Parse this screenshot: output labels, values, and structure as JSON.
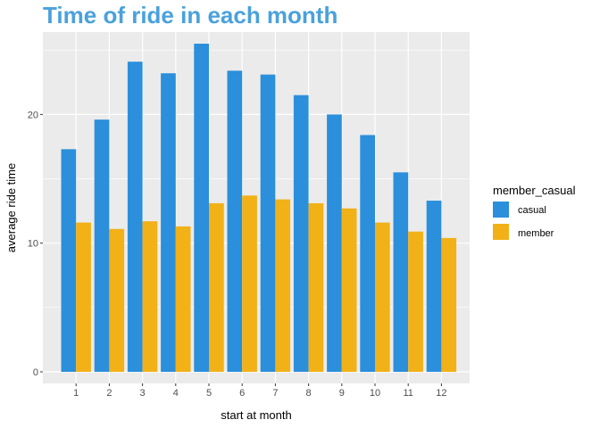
{
  "chart_data": {
    "type": "bar",
    "title": "Time of ride in each month",
    "xlabel": "start at month",
    "ylabel": "average ride time",
    "categories": [
      "1",
      "2",
      "3",
      "4",
      "5",
      "6",
      "7",
      "8",
      "9",
      "10",
      "11",
      "12"
    ],
    "series": [
      {
        "name": "casual",
        "color": "#2b8fdb",
        "values": [
          17.3,
          19.6,
          24.1,
          23.2,
          25.5,
          23.4,
          23.1,
          21.5,
          20.0,
          18.4,
          15.5,
          13.3
        ]
      },
      {
        "name": "member",
        "color": "#f2b117",
        "values": [
          11.6,
          11.1,
          11.7,
          11.3,
          13.1,
          13.7,
          13.4,
          13.1,
          12.7,
          11.6,
          10.9,
          10.4
        ]
      }
    ],
    "y_ticks": [
      "0",
      "10",
      "20"
    ],
    "ylim": [
      -0.9,
      26.4
    ],
    "grid": true,
    "legend": {
      "title": "member_casual",
      "position": "right"
    }
  }
}
